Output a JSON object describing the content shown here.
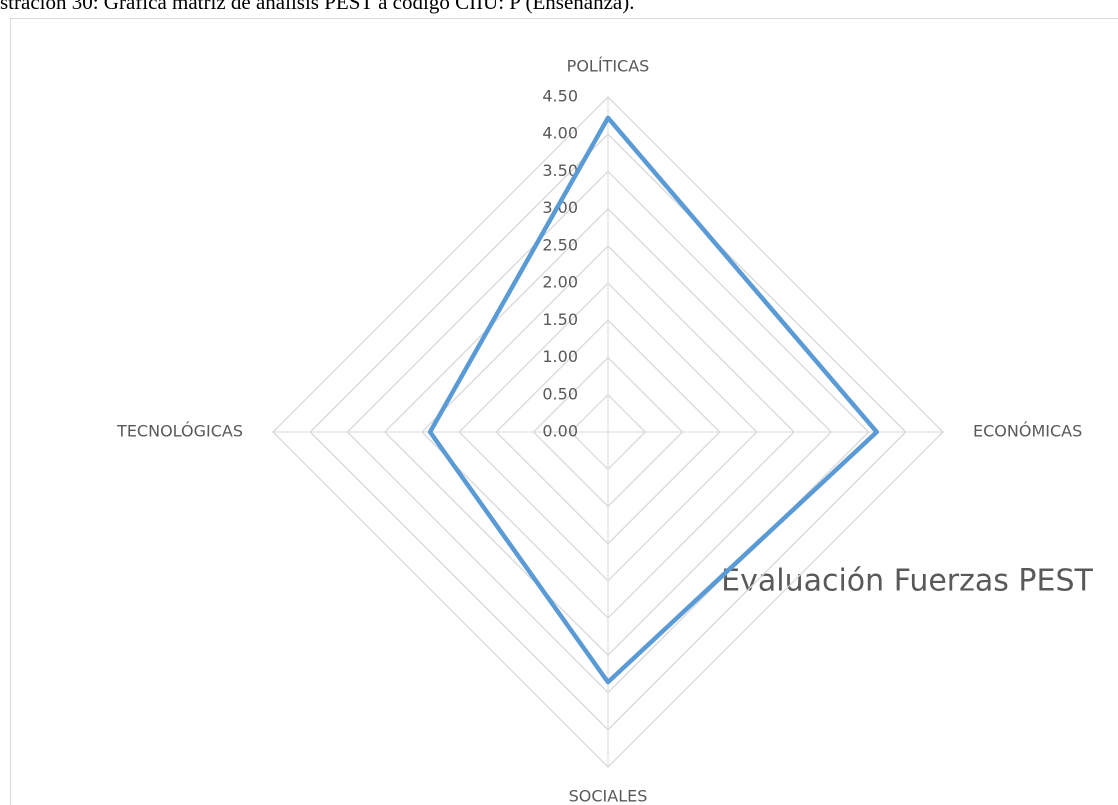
{
  "caption": "stración 30: Gráfica matriz de análisis PEST a código CIIU: P (Enseñanza).",
  "chart_data": {
    "type": "radar",
    "title": "Evaluación Fuerzas PEST",
    "categories": [
      "POLÍTICAS",
      "ECONÓMICAS",
      "SOCIALES",
      "TECNOLÓGICAS"
    ],
    "values": [
      4.22,
      3.61,
      3.36,
      2.39
    ],
    "color": "#5b9bd5",
    "rlim": [
      0,
      4.5
    ],
    "rticks": [
      {
        "value": 0,
        "label": "0.00"
      },
      {
        "value": 0.5,
        "label": "0.50"
      },
      {
        "value": 1,
        "label": "1.00"
      },
      {
        "value": 1.5,
        "label": "1.50"
      },
      {
        "value": 2,
        "label": "2.00"
      },
      {
        "value": 2.5,
        "label": "2.50"
      },
      {
        "value": 3,
        "label": "3.00"
      },
      {
        "value": 3.5,
        "label": "3.50"
      },
      {
        "value": 4,
        "label": "4.00"
      },
      {
        "value": 4.5,
        "label": "4.50"
      }
    ],
    "grid": true
  }
}
